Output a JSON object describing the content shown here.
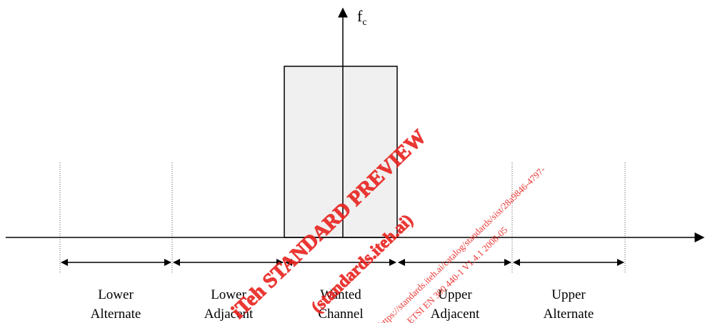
{
  "axis": {
    "frequency_label": "f",
    "frequency_subscript": "c"
  },
  "channels": [
    {
      "line1": "Lower",
      "line2": "Alternate"
    },
    {
      "line1": "Lower",
      "line2": "Adjacent"
    },
    {
      "line1": "Wanted",
      "line2": "Channel"
    },
    {
      "line1": "Upper",
      "line2": "Adjacent"
    },
    {
      "line1": "Upper",
      "line2": "Alternate"
    }
  ],
  "watermark": {
    "line1": "iTeh STANDARD PREVIEW",
    "line2": "(standards.iteh.ai)",
    "line3": "https://standards.iteh.ai/catalog/standards/sist/28a9846-4797-",
    "line4": "ETSI EN 300 440-1 V1.4.1 2008-05"
  },
  "colors": {
    "line": "#000000",
    "channel_fill": "#f0f0f0",
    "watermark": "#e8231f"
  }
}
